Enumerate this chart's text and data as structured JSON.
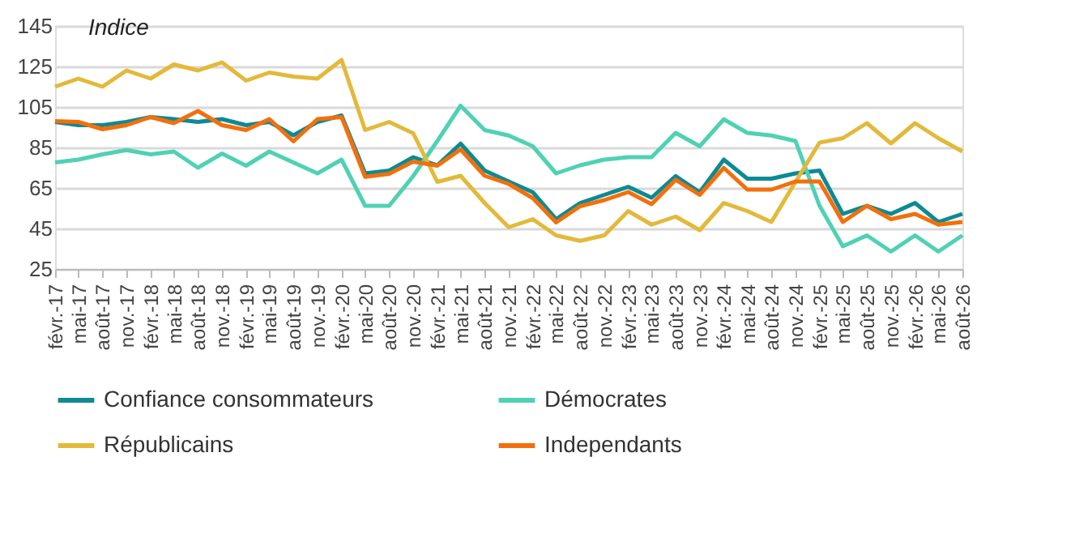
{
  "chart_data": {
    "type": "line",
    "ylabel": "Indice",
    "x": [
      "2017-02",
      "2017-05",
      "2017-08",
      "2017-11",
      "2018-02",
      "2018-05",
      "2018-08",
      "2018-11",
      "2019-02",
      "2019-05",
      "2019-08",
      "2019-11",
      "2020-02",
      "2020-05",
      "2020-08",
      "2020-11",
      "2021-02",
      "2021-05",
      "2021-08",
      "2021-11",
      "2022-02",
      "2022-05",
      "2022-08",
      "2022-11",
      "2023-02",
      "2023-05",
      "2023-08",
      "2023-11",
      "2024-02",
      "2024-05",
      "2024-08",
      "2024-11",
      "2025-02",
      "2025-05",
      "2025-08",
      "2025-11",
      "2026-02",
      "2026-05",
      "2026-08"
    ],
    "series": [
      {
        "name": "Confiance consommateurs",
        "color": "#0e8a93",
        "values": [
          97.6,
          96,
          96,
          97.6,
          100,
          99,
          97.6,
          99,
          96,
          97.6,
          91,
          97.6,
          100.8,
          72.2,
          73.6,
          80.2,
          76.2,
          86.9,
          73.6,
          68.2,
          62.9,
          49.6,
          57.6,
          61.6,
          65.6,
          60.2,
          70.9,
          62.9,
          79,
          69.6,
          69.6,
          72.2,
          73.6,
          52.2,
          56.2,
          52.2,
          57.6,
          48.2,
          52.2
        ]
      },
      {
        "name": "Démocrates",
        "color": "#4fd1b4",
        "values": [
          77.6,
          79,
          81.6,
          83.7,
          81.6,
          83,
          75,
          82,
          76,
          83,
          77.6,
          72.2,
          79,
          56.2,
          56.2,
          70.9,
          88.2,
          105.6,
          93.6,
          90.9,
          85.6,
          72.2,
          76.2,
          79,
          80.2,
          80.2,
          92.2,
          85.6,
          98.9,
          92.2,
          90.9,
          88.2,
          56.2,
          36.2,
          41.6,
          33.6,
          41.6,
          33.6,
          41.6
        ]
      },
      {
        "name": "Républicains",
        "color": "#e3b93a",
        "values": [
          115,
          119,
          115,
          123,
          119,
          126,
          123,
          127,
          118,
          122,
          120,
          119,
          128.2,
          93.6,
          97.6,
          92,
          68,
          71,
          57.6,
          45.6,
          49.6,
          41.6,
          38.9,
          41.6,
          53.6,
          46.9,
          50.9,
          44.2,
          57.6,
          53.6,
          48.2,
          68,
          87.4,
          89.6,
          97,
          87,
          97,
          89.6,
          83
        ]
      },
      {
        "name": "Independants",
        "color": "#f2700c",
        "values": [
          98,
          97.6,
          94,
          96,
          100,
          97,
          103,
          96,
          93.6,
          99,
          88,
          99,
          100,
          70.5,
          72,
          78,
          76,
          84,
          71,
          67,
          60,
          48,
          56,
          59,
          63,
          57,
          69,
          61.6,
          74.9,
          64.2,
          64.2,
          68.2,
          68.2,
          48.2,
          56.2,
          49.6,
          52.2,
          46.9,
          48.2
        ]
      }
    ],
    "xlim": [
      "2017-02",
      "2026-08"
    ],
    "xticks": [
      {
        "value": "2017-02",
        "label": "févr.-17"
      },
      {
        "value": "2017-05",
        "label": "mai-17"
      },
      {
        "value": "2017-08",
        "label": "août-17"
      },
      {
        "value": "2017-11",
        "label": "nov.-17"
      },
      {
        "value": "2018-02",
        "label": "févr.-18"
      },
      {
        "value": "2018-05",
        "label": "mai-18"
      },
      {
        "value": "2018-08",
        "label": "août-18"
      },
      {
        "value": "2018-11",
        "label": "nov.-18"
      },
      {
        "value": "2019-02",
        "label": "févr.-19"
      },
      {
        "value": "2019-05",
        "label": "mai-19"
      },
      {
        "value": "2019-08",
        "label": "août-19"
      },
      {
        "value": "2019-11",
        "label": "nov.-19"
      },
      {
        "value": "2020-02",
        "label": "févr.-20"
      },
      {
        "value": "2020-05",
        "label": "mai-20"
      },
      {
        "value": "2020-08",
        "label": "août-20"
      },
      {
        "value": "2020-11",
        "label": "nov.-20"
      },
      {
        "value": "2021-02",
        "label": "févr.-21"
      },
      {
        "value": "2021-05",
        "label": "mai-21"
      },
      {
        "value": "2021-08",
        "label": "août-21"
      },
      {
        "value": "2021-11",
        "label": "nov.-21"
      },
      {
        "value": "2022-02",
        "label": "févr.-22"
      },
      {
        "value": "2022-05",
        "label": "mai-22"
      },
      {
        "value": "2022-08",
        "label": "août-22"
      },
      {
        "value": "2022-11",
        "label": "nov.-22"
      },
      {
        "value": "2023-02",
        "label": "févr.-23"
      },
      {
        "value": "2023-05",
        "label": "mai-23"
      },
      {
        "value": "2023-08",
        "label": "août-23"
      },
      {
        "value": "2023-11",
        "label": "nov.-23"
      },
      {
        "value": "2024-02",
        "label": "févr.-24"
      },
      {
        "value": "2024-05",
        "label": "mai-24"
      },
      {
        "value": "2024-08",
        "label": "août-24"
      },
      {
        "value": "2024-11",
        "label": "nov.-24"
      },
      {
        "value": "2025-02",
        "label": "févr.-25"
      },
      {
        "value": "2025-05",
        "label": "mai-25"
      },
      {
        "value": "2025-08",
        "label": "août-25"
      },
      {
        "value": "2025-11",
        "label": "nov.-25"
      },
      {
        "value": "2026-02",
        "label": "févr.-26"
      },
      {
        "value": "2026-05",
        "label": "mai-26"
      },
      {
        "value": "2026-08",
        "label": "août-26"
      }
    ],
    "ylim": [
      25,
      145
    ],
    "yticks": [
      25,
      45,
      65,
      85,
      105,
      125,
      145
    ],
    "grid": "y",
    "legend": "bottom",
    "marker": "none",
    "line_style": "solid"
  }
}
